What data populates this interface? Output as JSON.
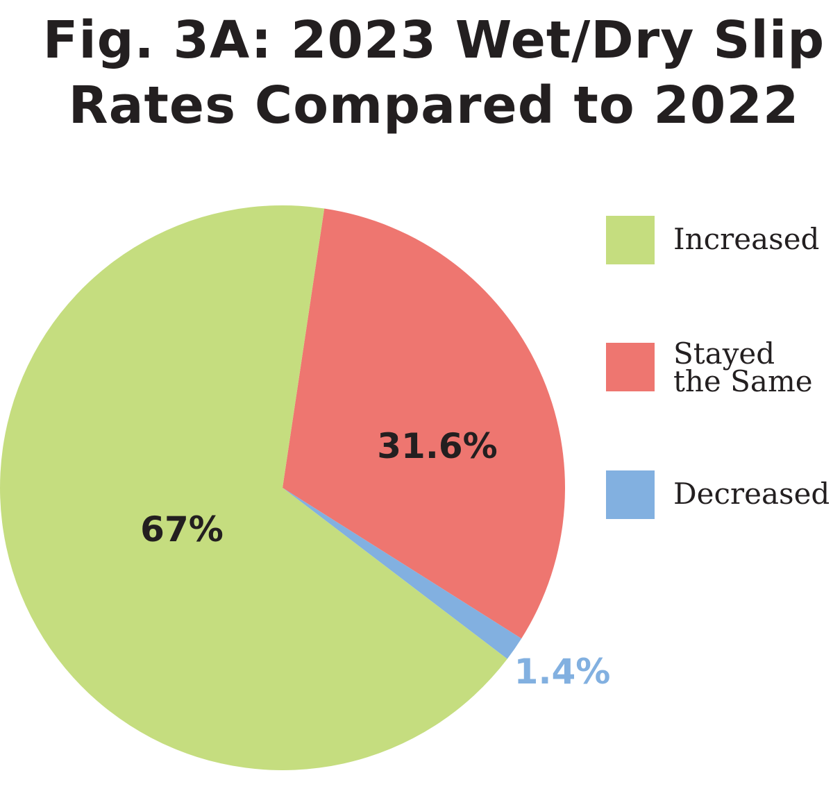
{
  "chart_data": {
    "type": "pie",
    "title_lines": [
      "Fig. 3A: 2023 Wet/Dry Slip",
      "Rates Compared to 2022"
    ],
    "series": [
      {
        "name": "Increased",
        "value": 67,
        "label": "67%",
        "color": "#c5dd7f"
      },
      {
        "name": "Stayed the Same",
        "value": 31.6,
        "label": "31.6%",
        "color": "#ee7670"
      },
      {
        "name": "Decreased",
        "value": 1.4,
        "label": "1.4%",
        "color": "#82b0e0"
      }
    ],
    "legend": {
      "placement": "right",
      "items": [
        {
          "lines": [
            "Increased"
          ]
        },
        {
          "lines": [
            "Stayed",
            "the Same"
          ]
        },
        {
          "lines": [
            "Decreased"
          ]
        }
      ]
    },
    "colors": {
      "title": "#231f20",
      "inside_label": "#231f20",
      "outside_label": "#82b0e0"
    }
  }
}
